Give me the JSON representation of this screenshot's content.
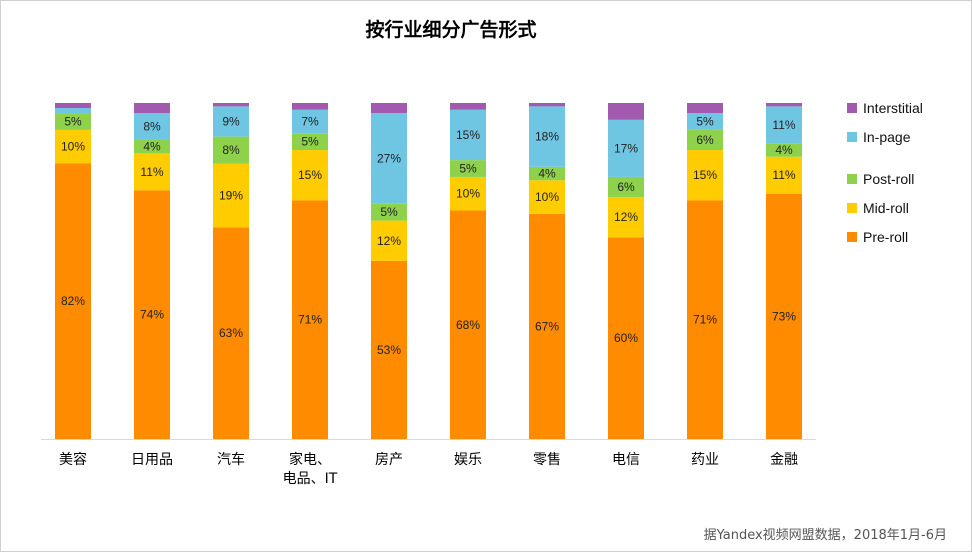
{
  "chart_data": {
    "type": "bar",
    "stacked": true,
    "title": "按行业细分广告形式",
    "categories": [
      "美容",
      "日用品",
      "汽车",
      "家电、电品、IT",
      "房产",
      "娱乐",
      "零售",
      "电信",
      "药业",
      "金融"
    ],
    "category_lines": [
      [
        "美容"
      ],
      [
        "日用品"
      ],
      [
        "汽车"
      ],
      [
        "家电、",
        "电品、IT"
      ],
      [
        "房产"
      ],
      [
        "娱乐"
      ],
      [
        "零售"
      ],
      [
        "电信"
      ],
      [
        "药业"
      ],
      [
        "金融"
      ]
    ],
    "ylim": [
      0,
      100
    ],
    "grid": false,
    "legend_position": "right",
    "series": [
      {
        "name": "Pre-roll",
        "color": "#FF8C00",
        "values": [
          82,
          74,
          63,
          71,
          53,
          68,
          67,
          60,
          71,
          73
        ],
        "labels": [
          "82%",
          "74%",
          "63%",
          "71%",
          "53%",
          "68%",
          "67%",
          "60%",
          "71%",
          "73%"
        ]
      },
      {
        "name": "Mid-roll",
        "color": "#FFCC00",
        "values": [
          10,
          11,
          19,
          15,
          12,
          10,
          10,
          12,
          15,
          11
        ],
        "labels": [
          "10%",
          "11%",
          "19%",
          "15%",
          "12%",
          "10%",
          "10%",
          "12%",
          "15%",
          "11%"
        ]
      },
      {
        "name": "Post-roll",
        "color": "#8ED14B",
        "values": [
          5,
          4,
          8,
          5,
          5,
          5,
          4,
          6,
          6,
          4
        ],
        "labels": [
          "5%",
          "4%",
          "8%",
          "5%",
          "5%",
          "5%",
          "4%",
          "6%",
          "6%",
          "4%"
        ]
      },
      {
        "name": "In-page",
        "color": "#6EC6E3",
        "values": [
          1.5,
          8,
          9,
          7,
          27,
          15,
          18,
          17,
          5,
          11
        ],
        "labels": [
          "",
          "8%",
          "9%",
          "7%",
          "27%",
          "15%",
          "18%",
          "17%",
          "5%",
          "11%"
        ]
      },
      {
        "name": "Interstitial",
        "color": "#A259B0",
        "values": [
          1.5,
          3,
          1,
          2,
          3,
          2,
          1,
          5,
          3,
          1
        ],
        "labels": [
          "",
          "",
          "",
          "",
          "",
          "",
          "",
          "",
          "",
          ""
        ]
      }
    ],
    "legend_order": [
      "Interstitial",
      "In-page",
      "Post-roll",
      "Mid-roll",
      "Pre-roll"
    ],
    "source_note": "据Yandex视频网盟数据，2018年1月-6月"
  }
}
